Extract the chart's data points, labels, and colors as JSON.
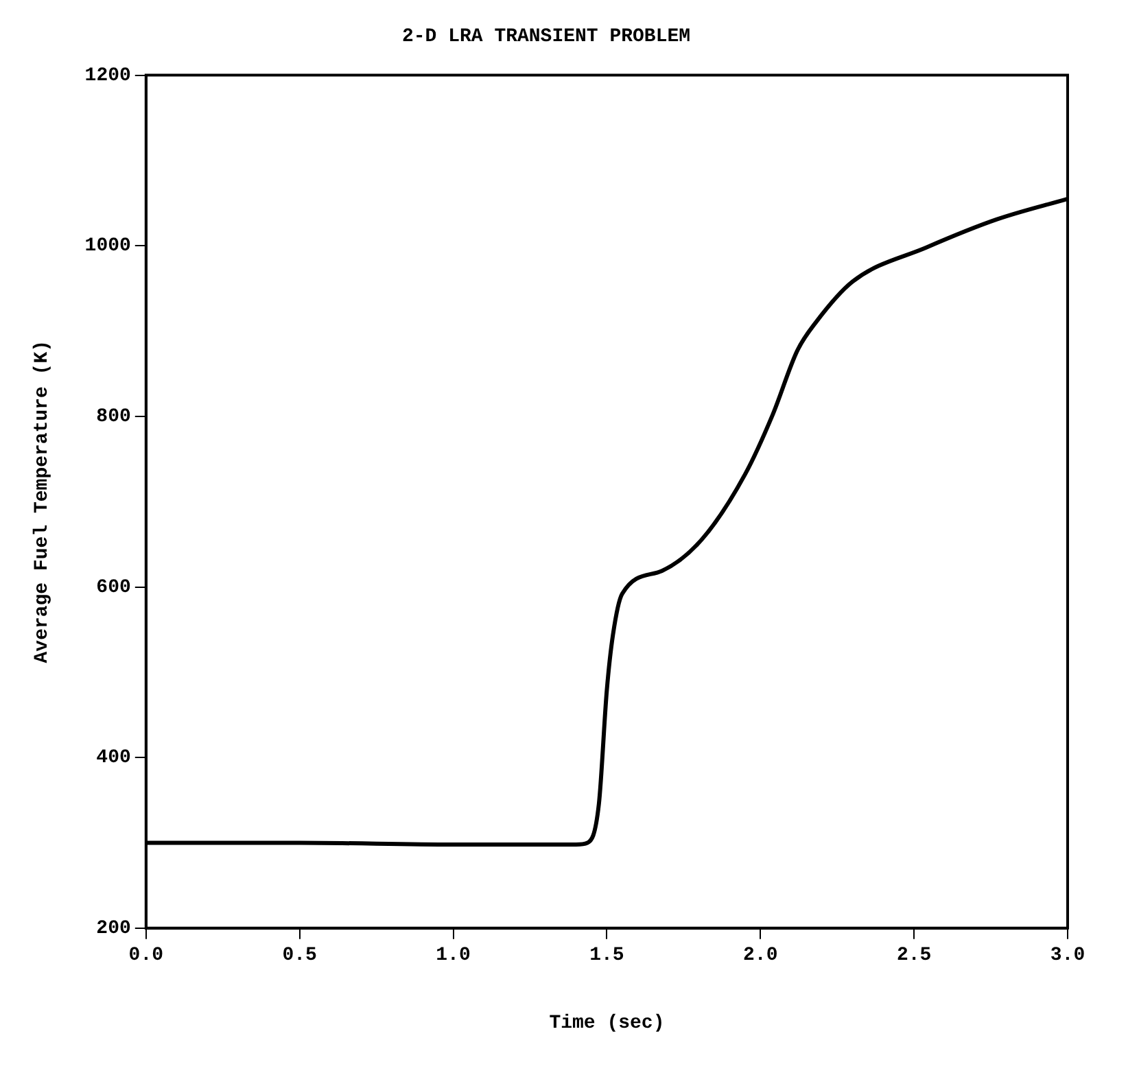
{
  "chart_data": {
    "type": "line",
    "title": "2-D LRA TRANSIENT PROBLEM",
    "xlabel": "Time (sec)",
    "ylabel": "Average Fuel Temperature (K)",
    "x": [
      0,
      0.5,
      1.0,
      1.14,
      1.4,
      1.437,
      1.474,
      1.5,
      1.52,
      1.55,
      1.68,
      1.81,
      1.95,
      2.04,
      2.12,
      2.18,
      2.3,
      2.54,
      2.77,
      3.0
    ],
    "series": [
      {
        "color": "#000000",
        "values": [
          300,
          300,
          298,
          298,
          298,
          300,
          345,
          479,
          544,
          592,
          619,
          656,
          732,
          802,
          877,
          910,
          958,
          998,
          1031,
          1055
        ]
      }
    ],
    "xlim": [
      0,
      3
    ],
    "xticks": [
      {
        "value": 0,
        "label": "0.0"
      },
      {
        "value": 0.5,
        "label": "0.5"
      },
      {
        "value": 1,
        "label": "1.0"
      },
      {
        "value": 1.5,
        "label": "1.5"
      },
      {
        "value": 2,
        "label": "2.0"
      },
      {
        "value": 2.5,
        "label": "2.5"
      },
      {
        "value": 3,
        "label": "3.0"
      }
    ],
    "ylim": [
      200,
      1200
    ],
    "yticks": [
      200,
      400,
      600,
      800,
      1000,
      1200
    ],
    "grid": false,
    "legend": false,
    "marker": "none",
    "line_style": "solid"
  }
}
